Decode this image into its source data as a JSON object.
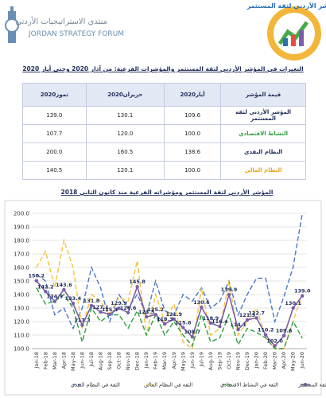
{
  "header": {
    "left_logo_title": "منتدى الاستراتيجيات الأردني",
    "left_logo_subtitle": "JORDAN STRATEGY FORUM",
    "right_logo_text": "المؤشر الأردني لثقة المستثمر"
  },
  "table": {
    "title": "التغيرات في المؤشر الأردني لثقة المستثمر والمؤشرات الفرعية: من آذار 2020 وحتى أيار 2020",
    "columns": [
      "قيمة المؤشر",
      "أيار2020",
      "حزيران2020",
      "تموز2020"
    ],
    "rows": [
      [
        "المؤشر الأردني لثقة المستثمر",
        "109.6",
        "130.1",
        "139.0"
      ],
      [
        "النشاط الاقتصادي",
        "100.0",
        "120.0",
        "107.7"
      ],
      [
        "النظام النقدي",
        "138.6",
        "160.5",
        "200.0"
      ],
      [
        "النظام المالي",
        "100.0",
        "120.1",
        "140.5"
      ]
    ]
  },
  "chart_data": {
    "type": "line",
    "title": "المؤشر الأردني لثقة المستثمر ومؤشراته الفرعية منذ كانون الثاني 2018",
    "categories": [
      "Jan-18",
      "Feb-18",
      "Mar-18",
      "Apr-18",
      "May-18",
      "Jun-18",
      "Jul-18",
      "Aug-18",
      "Sep-18",
      "Oct-18",
      "Nov-18",
      "Dec-18",
      "Jan-19",
      "Feb-19",
      "Mar-19",
      "Apr-19",
      "May-19",
      "Jun-19",
      "Jul-19",
      "Aug-19",
      "Sep-19",
      "Oct-19",
      "Nov-19",
      "Dec-19",
      "Jan-20",
      "Feb-20",
      "Mar-20",
      "Apr-20",
      "May-20",
      "Jun-20"
    ],
    "ylim": [
      100,
      200
    ],
    "yticks": [
      {
        "value": 100,
        "label": "100.0"
      },
      {
        "value": 110,
        "label": "110.0"
      },
      {
        "value": 120,
        "label": "120.0"
      },
      {
        "value": 130,
        "label": "130.0"
      },
      {
        "value": 140,
        "label": "140.0"
      },
      {
        "value": 150,
        "label": "150.0"
      },
      {
        "value": 160,
        "label": "160.0"
      },
      {
        "value": 170,
        "label": "170.0"
      },
      {
        "value": 180,
        "label": "180.0"
      },
      {
        "value": 190,
        "label": "190.0"
      },
      {
        "value": 200,
        "label": "200.0"
      }
    ],
    "grid": true,
    "series": [
      {
        "name": "المؤشر الأردني لثقة المستثمر",
        "color": "#7b5ea7",
        "dashed": false,
        "markers": true,
        "values": [
          150.2,
          142.2,
          134.9,
          143.6,
          133.4,
          117.3,
          131.8,
          127.1,
          125.4,
          129.9,
          126.6,
          145.8,
          123.5,
          125.2,
          118.3,
          121.9,
          115.6,
          108.7,
          130.6,
          118.9,
          116.4,
          139.9,
          114.1,
          121.3,
          122.7,
          110.2,
          102.0,
          109.6,
          130.1,
          139.0
        ],
        "value_labels": [
          "150.2",
          "142.2",
          "134.9",
          "143.6",
          "133.4",
          "117.3",
          "131.8",
          "127.1",
          "125.4",
          "129.9",
          "126.6",
          "145.8",
          "123.5",
          "125.2",
          "118.3",
          "121.9",
          "115.6",
          "108.7",
          "130.6",
          "118.9",
          "116.4",
          "139.9",
          "114.1",
          "121.3",
          "122.7",
          "110.2",
          "102.0",
          "109.6",
          "130.1",
          "139.0"
        ]
      },
      {
        "name": "الثقة في النشاط الاقتصادي",
        "color": "#2e9e3e",
        "dashed": true,
        "markers": false,
        "values": [
          145,
          133,
          135,
          140,
          130,
          105,
          130,
          120,
          125,
          125,
          115,
          128,
          110,
          125,
          110,
          120,
          110,
          102,
          125,
          105,
          108,
          125,
          103,
          115,
          112,
          108,
          100,
          100.0,
          120.0,
          107.7
        ]
      },
      {
        "name": "الثقة في النظام المالي",
        "color": "#f5c242",
        "dashed": true,
        "markers": false,
        "values": [
          160,
          172,
          145,
          180,
          160,
          115,
          140,
          135,
          125,
          138,
          135,
          165,
          110,
          140,
          120,
          133,
          105,
          100,
          145,
          110,
          115,
          150,
          110,
          120,
          130,
          108,
          100,
          100.0,
          120.1,
          140.5
        ]
      },
      {
        "name": "الثقة في النظام النقدي",
        "color": "#4a78c8",
        "dashed": true,
        "markers": false,
        "values": [
          155,
          150,
          125,
          130,
          115,
          130,
          160,
          145,
          120,
          140,
          130,
          140,
          125,
          150,
          128,
          125,
          140,
          135,
          145,
          130,
          135,
          150,
          125,
          140,
          152,
          152,
          120,
          138.6,
          160.5,
          200.0
        ]
      }
    ]
  }
}
